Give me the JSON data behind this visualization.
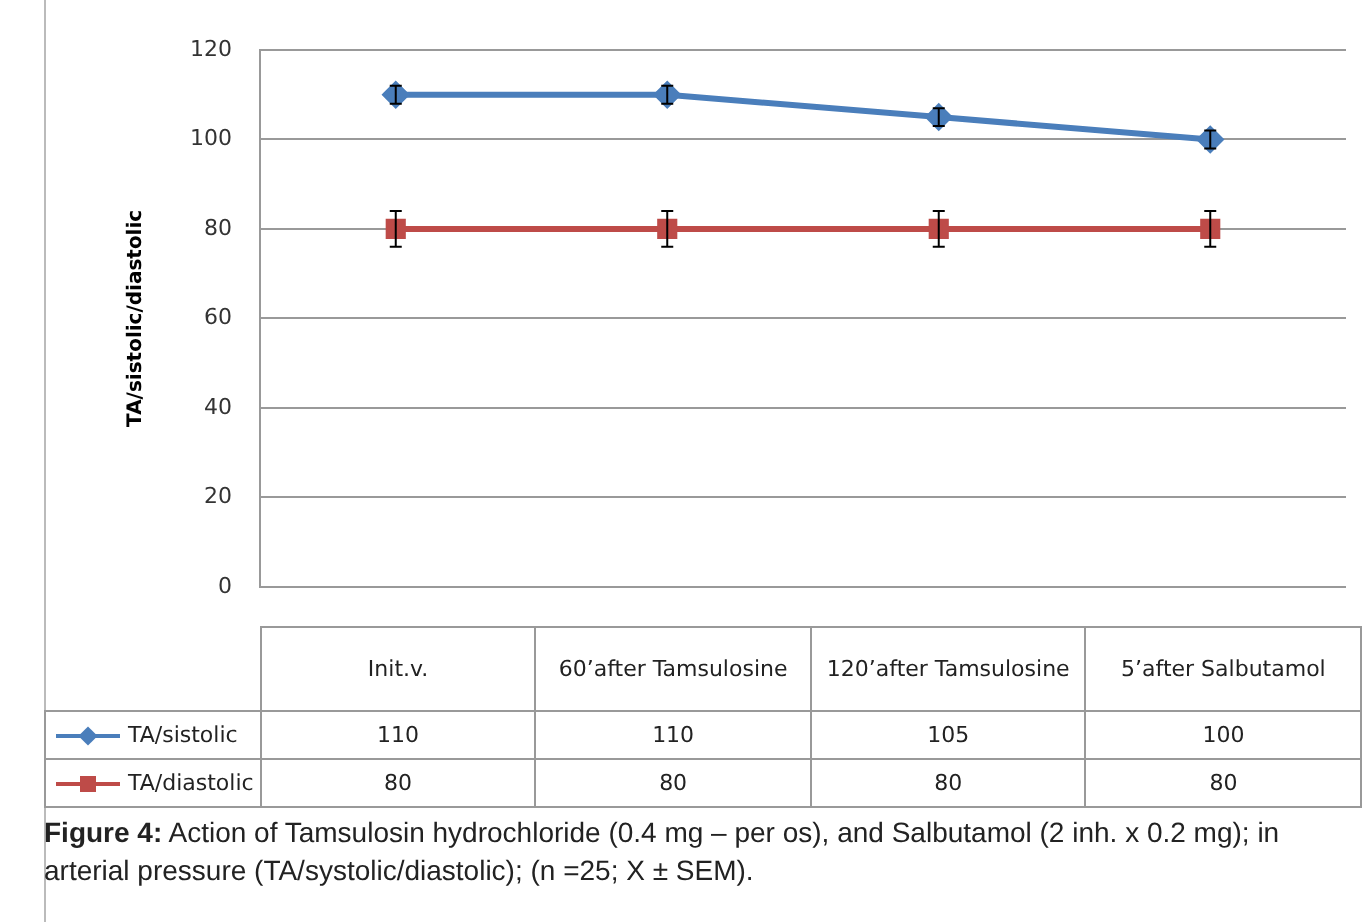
{
  "chart_data": {
    "type": "line",
    "ylabel": "TA/sistolic/diastolic",
    "categories": [
      "Init.v.",
      "60’after Tamsulosine",
      "120’after Tamsulosine",
      "5’after Salbutamol"
    ],
    "series": [
      {
        "name": "TA/sistolic",
        "color": "#4a7ebb",
        "values": [
          110,
          110,
          105,
          100
        ],
        "errors": [
          2,
          2,
          2,
          2
        ],
        "marker": "diamond"
      },
      {
        "name": "TA/diastolic",
        "color": "#be4b48",
        "values": [
          80,
          80,
          80,
          80
        ],
        "errors": [
          4,
          4,
          4,
          4
        ],
        "marker": "square"
      }
    ],
    "ylim": [
      0,
      120
    ],
    "yticks": [
      0,
      20,
      40,
      60,
      80,
      100,
      120
    ],
    "grid": "y",
    "legend": "bottom",
    "data_labels": true,
    "line_style": "solid",
    "annotations": [
      "Figure 4: Action of Tamsulosin hydrochloride (0.4 mg – per os), and Salbutamol (2 inh. x 0.2 mg); in arterial pressure (TA/systolic/diastolic); (n =25; X ± SEM)."
    ]
  }
}
